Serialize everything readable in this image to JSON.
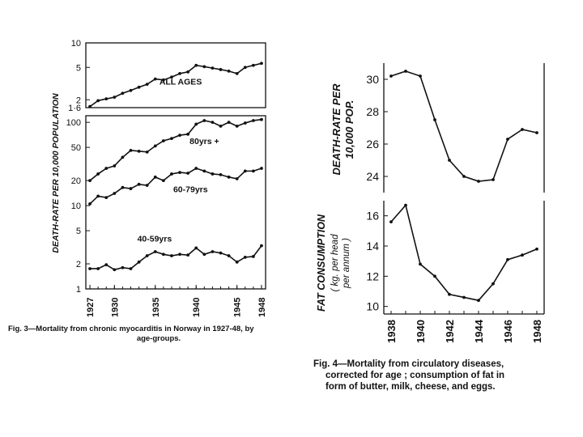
{
  "chart_data": [
    {
      "id": "fig3",
      "type": "line",
      "caption_lines": [
        "Fig. 3—Mortality from chronic myocarditis in Norway in 1927-48, by",
        "age-groups."
      ],
      "ylabel": "DEATH-RATE PER 10,000 POPULATION",
      "xlabel": "",
      "x": [
        1927,
        1928,
        1929,
        1930,
        1931,
        1932,
        1933,
        1934,
        1935,
        1936,
        1937,
        1938,
        1939,
        1940,
        1941,
        1942,
        1943,
        1944,
        1945,
        1946,
        1947,
        1948
      ],
      "x_tick_labels": [
        "1927",
        "1930",
        "1935",
        "1940",
        "1945",
        "1948"
      ],
      "x_ticks": [
        1927,
        1930,
        1935,
        1940,
        1945,
        1948
      ],
      "upper_panel": {
        "scale": "log",
        "ylim": [
          1.6,
          10
        ],
        "y_ticks": [
          1.6,
          2,
          5,
          10
        ],
        "y_tick_labels": [
          "1·6",
          "2",
          "5",
          "10"
        ],
        "series": [
          {
            "name": "ALL AGES",
            "values": [
              1.65,
              1.95,
              2.05,
              2.15,
              2.4,
              2.6,
              2.85,
              3.1,
              3.6,
              3.5,
              3.8,
              4.2,
              4.4,
              5.3,
              5.1,
              4.9,
              4.7,
              4.5,
              4.2,
              5.0,
              5.3,
              5.6
            ]
          }
        ]
      },
      "lower_panel": {
        "scale": "log",
        "ylim": [
          1,
          120
        ],
        "y_ticks": [
          1,
          2,
          5,
          10,
          20,
          50,
          100
        ],
        "y_tick_labels": [
          "1",
          "2",
          "5",
          "10",
          "20",
          "50",
          "100"
        ],
        "series": [
          {
            "name": "80yrs +",
            "values": [
              20,
              24,
              28,
              30,
              38,
              46,
              45,
              44,
              52,
              60,
              64,
              70,
              72,
              95,
              105,
              100,
              90,
              100,
              90,
              98,
              105,
              108
            ]
          },
          {
            "name": "60-79yrs",
            "values": [
              10.5,
              13,
              12.5,
              14,
              16.5,
              16,
              18,
              17.5,
              22,
              20,
              24,
              25,
              24.5,
              28,
              26,
              24,
              23.5,
              22,
              21,
              26,
              26,
              28
            ]
          },
          {
            "name": "40-59yrs",
            "values": [
              1.75,
              1.75,
              1.95,
              1.7,
              1.8,
              1.75,
              2.1,
              2.5,
              2.8,
              2.6,
              2.5,
              2.6,
              2.55,
              3.1,
              2.6,
              2.8,
              2.7,
              2.5,
              2.1,
              2.4,
              2.45,
              3.3
            ]
          }
        ]
      }
    },
    {
      "id": "fig4",
      "type": "line",
      "caption_lines": [
        "Fig. 4—Mortality from circulatory diseases,",
        "corrected for age ; consumption of fat in",
        "form of butter, milk, cheese, and eggs."
      ],
      "x": [
        1938,
        1939,
        1940,
        1941,
        1942,
        1943,
        1944,
        1945,
        1946,
        1947,
        1948
      ],
      "x_tick_labels": [
        "1938",
        "1940",
        "1942",
        "1944",
        "1946",
        "1948"
      ],
      "x_ticks": [
        1938,
        1940,
        1942,
        1944,
        1946,
        1948
      ],
      "upper_panel": {
        "ylabel_lines": [
          "DEATH-RATE PER",
          "10,000 POP."
        ],
        "ylim": [
          23,
          31
        ],
        "y_ticks": [
          24,
          26,
          28,
          30
        ],
        "y_tick_labels": [
          "24",
          "26",
          "28",
          "30"
        ],
        "series": [
          {
            "name": "Death-rate per 10,000 pop.",
            "values": [
              30.2,
              30.5,
              30.2,
              27.5,
              25.0,
              24.0,
              23.7,
              23.8,
              26.3,
              26.9,
              26.7
            ]
          }
        ]
      },
      "lower_panel": {
        "ylabel_lines": [
          "FAT CONSUMPTION",
          "( kg. per head",
          "per annum )"
        ],
        "ylim": [
          9.5,
          17
        ],
        "y_ticks": [
          10,
          12,
          14,
          16
        ],
        "y_tick_labels": [
          "10",
          "12",
          "14",
          "16"
        ],
        "series": [
          {
            "name": "Fat consumption (kg. per head per annum)",
            "values": [
              15.6,
              16.7,
              12.8,
              12.0,
              10.8,
              10.6,
              10.4,
              11.5,
              13.1,
              13.4,
              13.8
            ]
          }
        ]
      }
    }
  ]
}
